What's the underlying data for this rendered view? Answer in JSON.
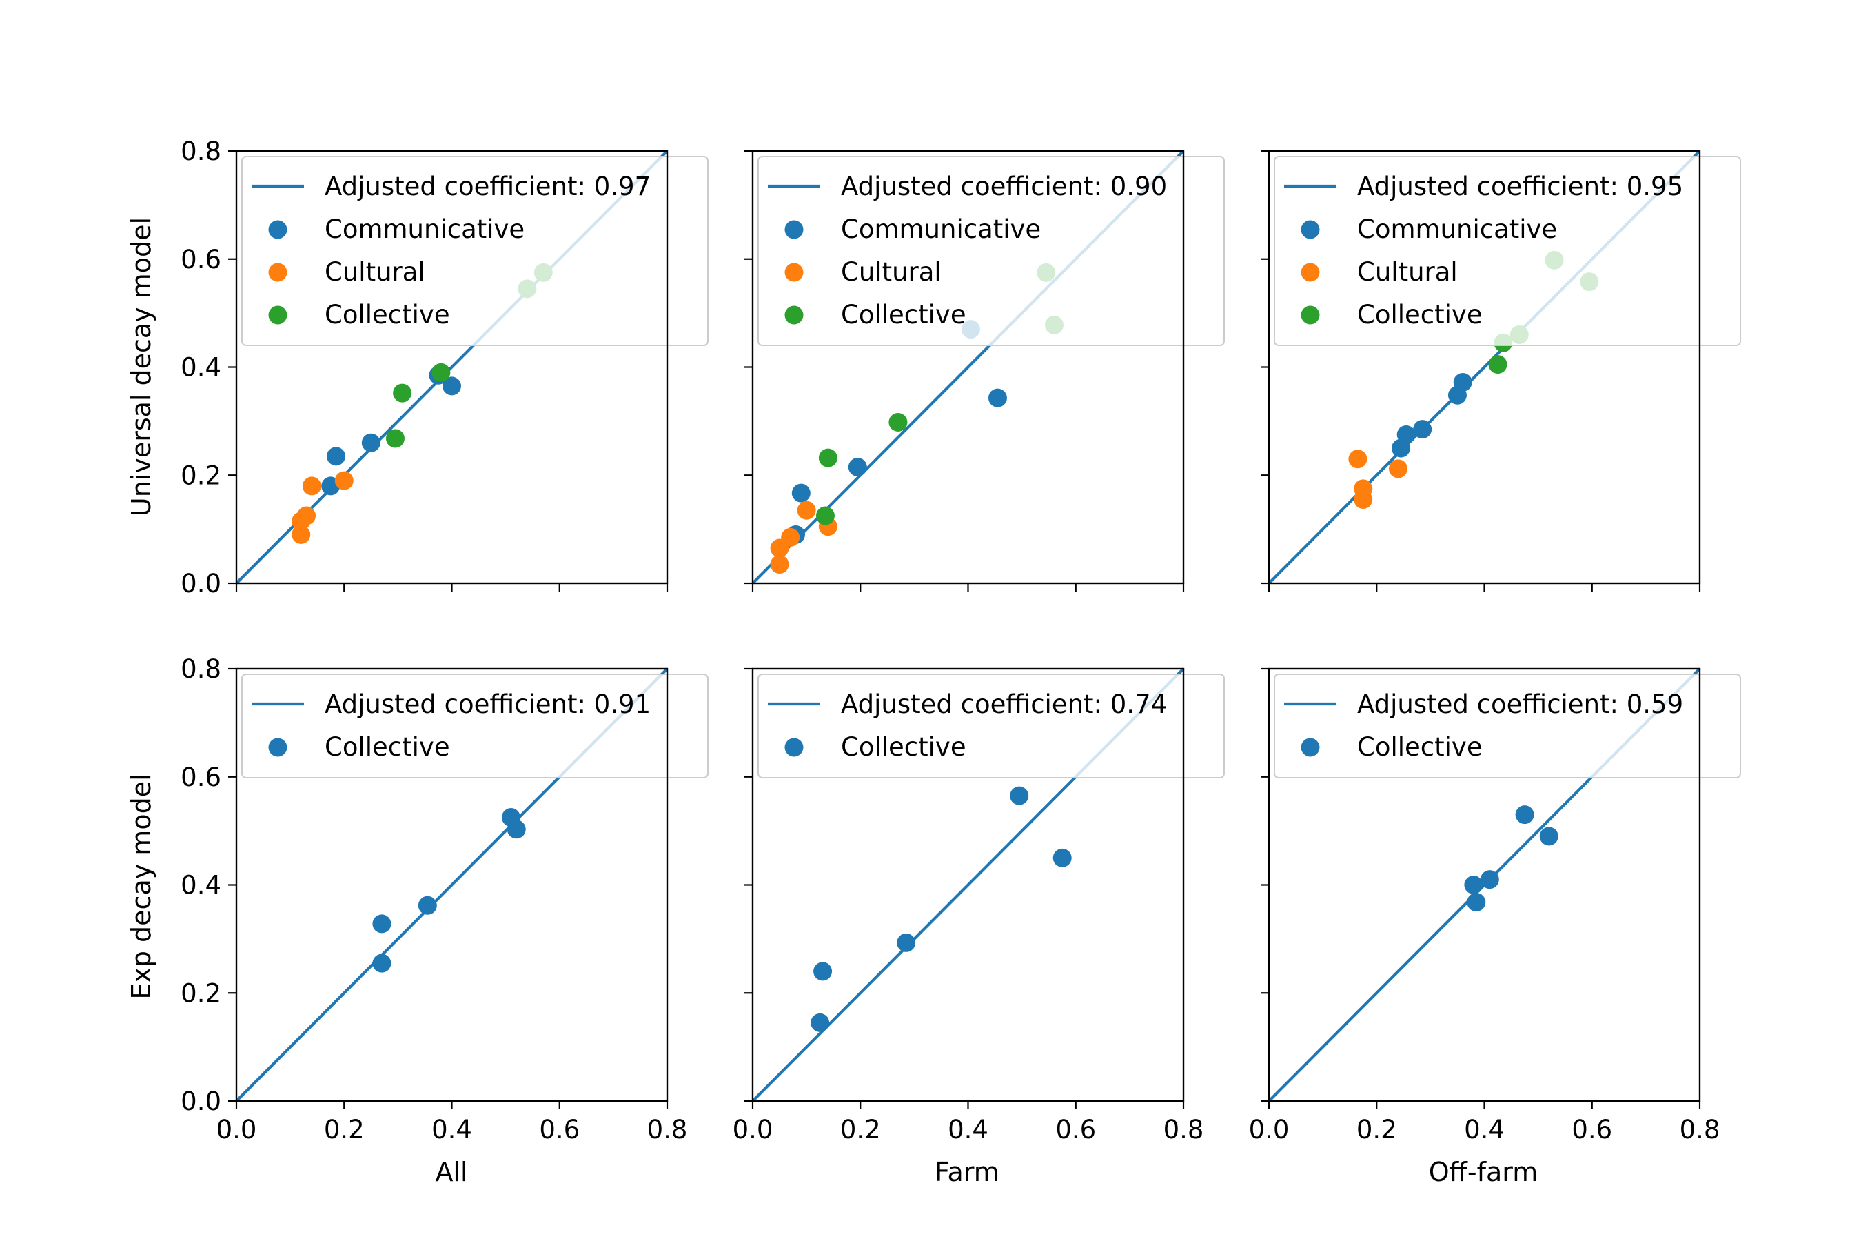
{
  "colors": {
    "blue": "#1f77b4",
    "orange": "#ff7f0e",
    "green": "#2ca02c",
    "axis": "#000000",
    "legend_border": "#cccccc"
  },
  "figure": {
    "row_ylabels": [
      "Universal decay model",
      "Exp decay model"
    ],
    "col_xlabels": [
      "All",
      "Farm",
      "Off-farm"
    ]
  },
  "chart_data": [
    {
      "type": "scatter",
      "xlabel": "All",
      "ylabel": "Universal decay model",
      "xlim": [
        0,
        0.8
      ],
      "ylim": [
        0,
        0.8
      ],
      "xticks": [
        "0.0",
        "0.2",
        "0.4",
        "0.6",
        "0.8"
      ],
      "yticks": [
        "0.0",
        "0.2",
        "0.4",
        "0.6",
        "0.8"
      ],
      "legend_location": "upper-left",
      "line": {
        "label": "Adjusted coefficient: 0.97",
        "from": [
          0,
          0
        ],
        "to": [
          0.8,
          0.8
        ]
      },
      "series": [
        {
          "name": "Communicative",
          "color": "#1f77b4",
          "points": [
            [
              0.175,
              0.18
            ],
            [
              0.185,
              0.235
            ],
            [
              0.25,
              0.26
            ],
            [
              0.375,
              0.385
            ],
            [
              0.4,
              0.365
            ]
          ]
        },
        {
          "name": "Cultural",
          "color": "#ff7f0e",
          "points": [
            [
              0.12,
              0.09
            ],
            [
              0.12,
              0.115
            ],
            [
              0.13,
              0.125
            ],
            [
              0.14,
              0.18
            ],
            [
              0.2,
              0.19
            ]
          ]
        },
        {
          "name": "Collective",
          "color": "#2ca02c",
          "points": [
            [
              0.295,
              0.268
            ],
            [
              0.308,
              0.352
            ],
            [
              0.38,
              0.39
            ],
            [
              0.54,
              0.545
            ],
            [
              0.57,
              0.575
            ]
          ]
        }
      ]
    },
    {
      "type": "scatter",
      "xlabel": "Farm",
      "ylabel": "",
      "xlim": [
        0,
        0.8
      ],
      "ylim": [
        0,
        0.8
      ],
      "xticks": [
        "0.0",
        "0.2",
        "0.4",
        "0.6",
        "0.8"
      ],
      "yticks": [
        "0.0",
        "0.2",
        "0.4",
        "0.6",
        "0.8"
      ],
      "legend_location": "upper-left",
      "line": {
        "label": "Adjusted coefficient: 0.90",
        "from": [
          0,
          0
        ],
        "to": [
          0.8,
          0.8
        ]
      },
      "series": [
        {
          "name": "Communicative",
          "color": "#1f77b4",
          "points": [
            [
              0.08,
              0.09
            ],
            [
              0.09,
              0.167
            ],
            [
              0.195,
              0.215
            ],
            [
              0.405,
              0.47
            ],
            [
              0.455,
              0.343
            ]
          ]
        },
        {
          "name": "Cultural",
          "color": "#ff7f0e",
          "points": [
            [
              0.05,
              0.035
            ],
            [
              0.05,
              0.065
            ],
            [
              0.07,
              0.085
            ],
            [
              0.1,
              0.135
            ],
            [
              0.14,
              0.105
            ]
          ]
        },
        {
          "name": "Collective",
          "color": "#2ca02c",
          "points": [
            [
              0.135,
              0.125
            ],
            [
              0.14,
              0.232
            ],
            [
              0.27,
              0.298
            ],
            [
              0.545,
              0.575
            ],
            [
              0.56,
              0.478
            ]
          ]
        }
      ]
    },
    {
      "type": "scatter",
      "xlabel": "Off-farm",
      "ylabel": "",
      "xlim": [
        0,
        0.8
      ],
      "ylim": [
        0,
        0.8
      ],
      "xticks": [
        "0.0",
        "0.2",
        "0.4",
        "0.6",
        "0.8"
      ],
      "yticks": [
        "0.0",
        "0.2",
        "0.4",
        "0.6",
        "0.8"
      ],
      "legend_location": "upper-left",
      "line": {
        "label": "Adjusted coefficient: 0.95",
        "from": [
          0,
          0
        ],
        "to": [
          0.8,
          0.8
        ]
      },
      "series": [
        {
          "name": "Communicative",
          "color": "#1f77b4",
          "points": [
            [
              0.245,
              0.25
            ],
            [
              0.255,
              0.275
            ],
            [
              0.285,
              0.285
            ],
            [
              0.35,
              0.348
            ],
            [
              0.36,
              0.372
            ]
          ]
        },
        {
          "name": "Cultural",
          "color": "#ff7f0e",
          "points": [
            [
              0.165,
              0.23
            ],
            [
              0.175,
              0.155
            ],
            [
              0.175,
              0.175
            ],
            [
              0.24,
              0.212
            ]
          ]
        },
        {
          "name": "Collective",
          "color": "#2ca02c",
          "points": [
            [
              0.425,
              0.405
            ],
            [
              0.435,
              0.445
            ],
            [
              0.465,
              0.46
            ],
            [
              0.53,
              0.598
            ],
            [
              0.595,
              0.558
            ]
          ]
        }
      ]
    },
    {
      "type": "scatter",
      "xlabel": "All",
      "ylabel": "Exp decay model",
      "xlim": [
        0,
        0.8
      ],
      "ylim": [
        0,
        0.8
      ],
      "xticks": [
        "0.0",
        "0.2",
        "0.4",
        "0.6",
        "0.8"
      ],
      "yticks": [
        "0.0",
        "0.2",
        "0.4",
        "0.6",
        "0.8"
      ],
      "legend_location": "upper-left",
      "line": {
        "label": "Adjusted coefficient: 0.91",
        "from": [
          0,
          0
        ],
        "to": [
          0.8,
          0.8
        ]
      },
      "series": [
        {
          "name": "Collective",
          "color": "#1f77b4",
          "points": [
            [
              0.27,
              0.255
            ],
            [
              0.27,
              0.328
            ],
            [
              0.355,
              0.362
            ],
            [
              0.51,
              0.525
            ],
            [
              0.52,
              0.503
            ]
          ]
        }
      ]
    },
    {
      "type": "scatter",
      "xlabel": "Farm",
      "ylabel": "",
      "xlim": [
        0,
        0.8
      ],
      "ylim": [
        0,
        0.8
      ],
      "xticks": [
        "0.0",
        "0.2",
        "0.4",
        "0.6",
        "0.8"
      ],
      "yticks": [
        "0.0",
        "0.2",
        "0.4",
        "0.6",
        "0.8"
      ],
      "legend_location": "upper-left",
      "line": {
        "label": "Adjusted coefficient: 0.74",
        "from": [
          0,
          0
        ],
        "to": [
          0.8,
          0.8
        ]
      },
      "series": [
        {
          "name": "Collective",
          "color": "#1f77b4",
          "points": [
            [
              0.125,
              0.145
            ],
            [
              0.13,
              0.24
            ],
            [
              0.285,
              0.293
            ],
            [
              0.495,
              0.565
            ],
            [
              0.575,
              0.45
            ]
          ]
        }
      ]
    },
    {
      "type": "scatter",
      "xlabel": "Off-farm",
      "ylabel": "",
      "xlim": [
        0,
        0.8
      ],
      "ylim": [
        0,
        0.8
      ],
      "xticks": [
        "0.0",
        "0.2",
        "0.4",
        "0.6",
        "0.8"
      ],
      "yticks": [
        "0.0",
        "0.2",
        "0.4",
        "0.6",
        "0.8"
      ],
      "legend_location": "upper-left",
      "line": {
        "label": "Adjusted coefficient: 0.59",
        "from": [
          0,
          0
        ],
        "to": [
          0.8,
          0.8
        ]
      },
      "series": [
        {
          "name": "Collective",
          "color": "#1f77b4",
          "points": [
            [
              0.38,
              0.4
            ],
            [
              0.385,
              0.368
            ],
            [
              0.41,
              0.41
            ],
            [
              0.475,
              0.53
            ],
            [
              0.52,
              0.49
            ]
          ]
        }
      ]
    }
  ]
}
